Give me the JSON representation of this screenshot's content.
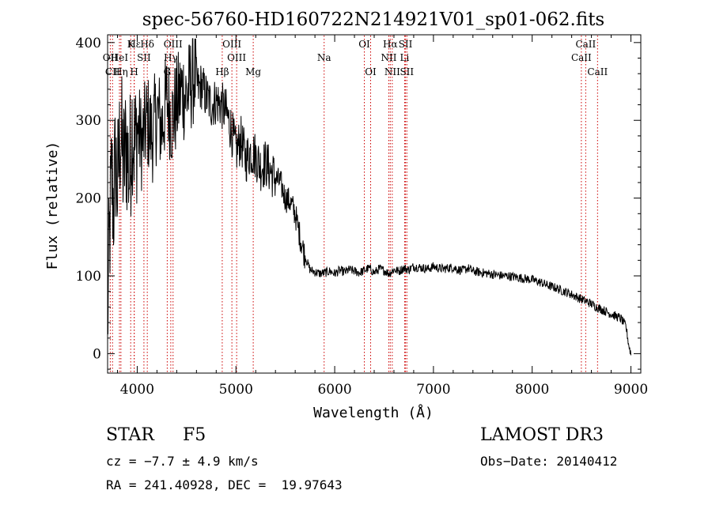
{
  "chart_data": {
    "type": "line",
    "title": "spec-56760-HD160722N214921V01_sp01-062.fits",
    "xlabel": "Wavelength (Å)",
    "ylabel": "Flux (relative)",
    "xlim": [
      3700,
      9100
    ],
    "ylim": [
      -25,
      410
    ],
    "x_ticks": [
      4000,
      5000,
      6000,
      7000,
      8000,
      9000
    ],
    "y_ticks": [
      0,
      100,
      200,
      300,
      400
    ],
    "grid": false,
    "series": [
      {
        "name": "spectrum",
        "color": "#000000",
        "x": [
          3700,
          3720,
          3740,
          3760,
          3780,
          3800,
          3830,
          3860,
          3890,
          3920,
          3950,
          3980,
          4000,
          4050,
          4100,
          4150,
          4200,
          4250,
          4300,
          4350,
          4400,
          4450,
          4500,
          4550,
          4580,
          4620,
          4650,
          4700,
          4750,
          4800,
          4850,
          4900,
          4950,
          5000,
          5050,
          5100,
          5150,
          5200,
          5250,
          5300,
          5350,
          5400,
          5450,
          5500,
          5550,
          5600,
          5650,
          5700,
          5750,
          5800,
          5850,
          5900,
          5950,
          6000,
          6050,
          6100,
          6150,
          6200,
          6250,
          6300,
          6350,
          6400,
          6450,
          6500,
          6550,
          6600,
          6650,
          6700,
          6750,
          6800,
          6850,
          6900,
          6950,
          7000,
          7050,
          7100,
          7150,
          7200,
          7250,
          7300,
          7350,
          7400,
          7450,
          7500,
          7550,
          7600,
          7650,
          7700,
          7750,
          7800,
          7850,
          7900,
          7950,
          8000,
          8050,
          8100,
          8150,
          8200,
          8250,
          8300,
          8350,
          8400,
          8450,
          8500,
          8550,
          8600,
          8650,
          8700,
          8750,
          8800,
          8850,
          8900,
          8950,
          8980,
          9000
        ],
        "y": [
          40,
          150,
          230,
          190,
          250,
          210,
          290,
          240,
          270,
          230,
          300,
          260,
          290,
          270,
          300,
          280,
          310,
          290,
          330,
          300,
          320,
          340,
          330,
          350,
          360,
          340,
          345,
          330,
          320,
          325,
          320,
          310,
          290,
          260,
          275,
          250,
          260,
          255,
          240,
          245,
          235,
          225,
          220,
          200,
          195,
          180,
          150,
          125,
          108,
          105,
          103,
          104,
          106,
          103,
          107,
          105,
          108,
          106,
          104,
          107,
          110,
          104,
          109,
          107,
          103,
          108,
          106,
          110,
          108,
          112,
          111,
          110,
          109,
          112,
          110,
          109,
          110,
          111,
          108,
          107,
          110,
          106,
          105,
          104,
          103,
          102,
          101,
          100,
          100,
          99,
          98,
          97,
          96,
          95,
          93,
          91,
          88,
          86,
          84,
          81,
          79,
          76,
          73,
          70,
          67,
          64,
          60,
          57,
          54,
          51,
          48,
          45,
          35,
          10,
          0
        ]
      }
    ],
    "lines": [
      {
        "name": "Hε",
        "x": 3970,
        "label": "Hε",
        "row": 1
      },
      {
        "name": "OII",
        "x": 3727,
        "label": "OII",
        "row": 2
      },
      {
        "name": "CII",
        "x": 3750,
        "label": "CII",
        "row": 3
      },
      {
        "name": "HeI",
        "x": 3820,
        "label": "HeI",
        "row": 2
      },
      {
        "name": "Hη",
        "x": 3835,
        "label": "Hη",
        "row": 3
      },
      {
        "name": "K",
        "x": 3934,
        "label": "K",
        "row": 1
      },
      {
        "name": "H",
        "x": 3969,
        "label": "H",
        "row": 3
      },
      {
        "name": "SII",
        "x": 4068,
        "label": "SII",
        "row": 2
      },
      {
        "name": "Hδ",
        "x": 4102,
        "label": "Hδ",
        "row": 1
      },
      {
        "name": "OIII-4363",
        "x": 4363,
        "label": "OIII",
        "row": 1
      },
      {
        "name": "Hγ",
        "x": 4340,
        "label": "Hγ",
        "row": 2
      },
      {
        "name": "G",
        "x": 4304,
        "label": "G",
        "row": 3
      },
      {
        "name": "Hβ",
        "x": 4861,
        "label": "Hβ",
        "row": 3
      },
      {
        "name": "OIII-4959",
        "x": 4959,
        "label": "OIII",
        "row": 1
      },
      {
        "name": "OIII-5007",
        "x": 5007,
        "label": "OIII",
        "row": 2
      },
      {
        "name": "Mg",
        "x": 5175,
        "label": "Mg",
        "row": 3
      },
      {
        "name": "Na",
        "x": 5893,
        "label": "Na",
        "row": 2
      },
      {
        "name": "OI-6300",
        "x": 6300,
        "label": "OI",
        "row": 1
      },
      {
        "name": "OI-6364",
        "x": 6364,
        "label": "OI",
        "row": 3
      },
      {
        "name": "Hα",
        "x": 6563,
        "label": "Hα",
        "row": 1
      },
      {
        "name": "NII-6548",
        "x": 6548,
        "label": "NII",
        "row": 2
      },
      {
        "name": "NII-6583",
        "x": 6583,
        "label": "NII",
        "row": 3
      },
      {
        "name": "SII-6717",
        "x": 6717,
        "label": "SII",
        "row": 1
      },
      {
        "name": "Li",
        "x": 6708,
        "label": "Li",
        "row": 2
      },
      {
        "name": "SII-6731",
        "x": 6731,
        "label": "SII",
        "row": 3
      },
      {
        "name": "CaII-8498",
        "x": 8498,
        "label": "CaII",
        "row": 2
      },
      {
        "name": "CaII-8542",
        "x": 8542,
        "label": "CaII",
        "row": 1
      },
      {
        "name": "CaII-8662",
        "x": 8662,
        "label": "CaII",
        "row": 3
      }
    ]
  },
  "info": {
    "class_label": "STAR",
    "subclass": "F5",
    "survey": "LAMOST DR3",
    "cz": "cz = −7.7 ± 4.9 km/s",
    "obs_date": "Obs−Date: 20140412",
    "coords": "RA = 241.40928, DEC =  19.97643"
  },
  "colors": {
    "axes": "#000000",
    "spectrum": "#000000",
    "line_marker": "#cc0000"
  }
}
